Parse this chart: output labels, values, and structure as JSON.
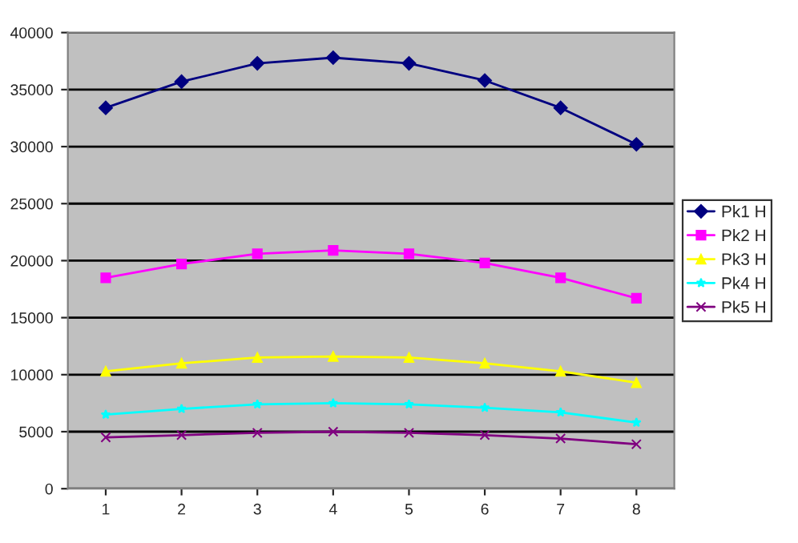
{
  "chart_data": {
    "type": "line",
    "categories": [
      "1",
      "2",
      "3",
      "4",
      "5",
      "6",
      "7",
      "8"
    ],
    "ylim": [
      0,
      40000
    ],
    "yticks": [
      0,
      5000,
      10000,
      15000,
      20000,
      25000,
      30000,
      35000,
      40000
    ],
    "grid": "y",
    "legend": "right",
    "series": [
      {
        "name": "Pk1 H",
        "color": "#000080",
        "marker": "diamond",
        "values": [
          33400,
          35700,
          37300,
          37800,
          37300,
          35800,
          33400,
          30200
        ]
      },
      {
        "name": "Pk2 H",
        "color": "#ff00ff",
        "marker": "square",
        "values": [
          18500,
          19700,
          20600,
          20900,
          20600,
          19800,
          18500,
          16700
        ]
      },
      {
        "name": "Pk3 H",
        "color": "#ffff00",
        "marker": "triangle",
        "values": [
          10300,
          11000,
          11500,
          11600,
          11500,
          11000,
          10300,
          9300
        ]
      },
      {
        "name": "Pk4 H",
        "color": "#00ffff",
        "marker": "star",
        "values": [
          6500,
          7000,
          7400,
          7500,
          7400,
          7100,
          6700,
          5800
        ]
      },
      {
        "name": "Pk5 H",
        "color": "#800080",
        "marker": "cross",
        "values": [
          4500,
          4700,
          4900,
          5000,
          4900,
          4700,
          4400,
          3900
        ]
      }
    ]
  }
}
